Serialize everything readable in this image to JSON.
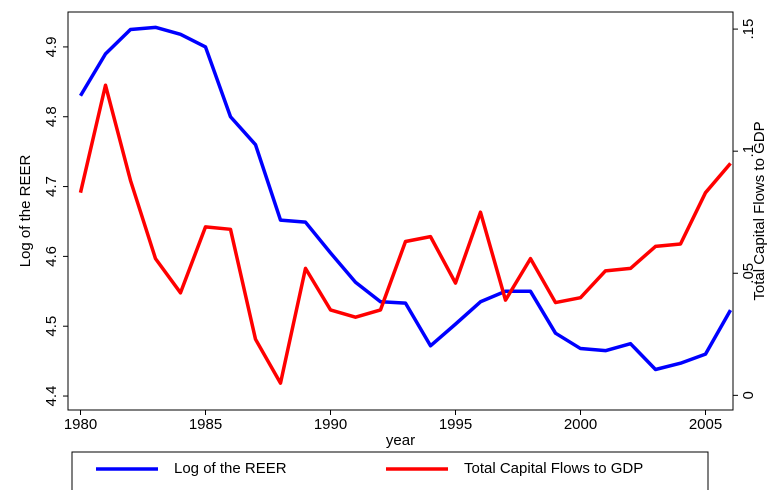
{
  "chart_data": {
    "type": "line",
    "x": [
      1980,
      1981,
      1982,
      1983,
      1984,
      1985,
      1986,
      1987,
      1988,
      1989,
      1990,
      1991,
      1992,
      1993,
      1994,
      1995,
      1996,
      1997,
      1998,
      1999,
      2000,
      2001,
      2002,
      2003,
      2004,
      2005,
      2006
    ],
    "series": [
      {
        "name": "Log of the REER",
        "color": "#0000ff",
        "values": [
          4.83,
          4.89,
          4.925,
          4.928,
          4.918,
          4.9,
          4.8,
          4.76,
          4.652,
          4.649,
          4.605,
          4.563,
          4.535,
          4.533,
          4.472,
          4.503,
          4.535,
          4.55,
          4.55,
          4.49,
          4.468,
          4.465,
          4.475,
          4.438,
          4.447,
          4.46,
          4.523
        ]
      },
      {
        "name": "Total Capital Flows to GDP",
        "color": "#ff0000",
        "axis": "y2",
        "values": [
          0.083,
          0.127,
          0.088,
          0.056,
          0.042,
          0.069,
          0.068,
          0.023,
          0.005,
          0.052,
          0.035,
          0.032,
          0.035,
          0.063,
          0.065,
          0.046,
          0.075,
          0.039,
          0.056,
          0.038,
          0.04,
          0.051,
          0.052,
          0.061,
          0.062,
          0.083,
          0.095
        ]
      }
    ],
    "xlabel": "year",
    "ylabel": "Log of the REER",
    "y2label": "Total Capital Flows to GDP",
    "xlim": [
      1979.5,
      2006.1
    ],
    "xticks": [
      1980,
      1985,
      1990,
      1995,
      2000,
      2005
    ],
    "ylim": [
      4.38,
      4.95
    ],
    "yticks": [
      4.4,
      4.5,
      4.6,
      4.7,
      4.8,
      4.9
    ],
    "y2lim": [
      -0.006,
      0.157
    ],
    "y2ticks": [
      0,
      {
        "value": 0.05,
        "label": ".05"
      },
      {
        "value": 0.1,
        "label": ".1"
      },
      {
        "value": 0.15,
        "label": ".15"
      }
    ],
    "legend": "bottom"
  }
}
